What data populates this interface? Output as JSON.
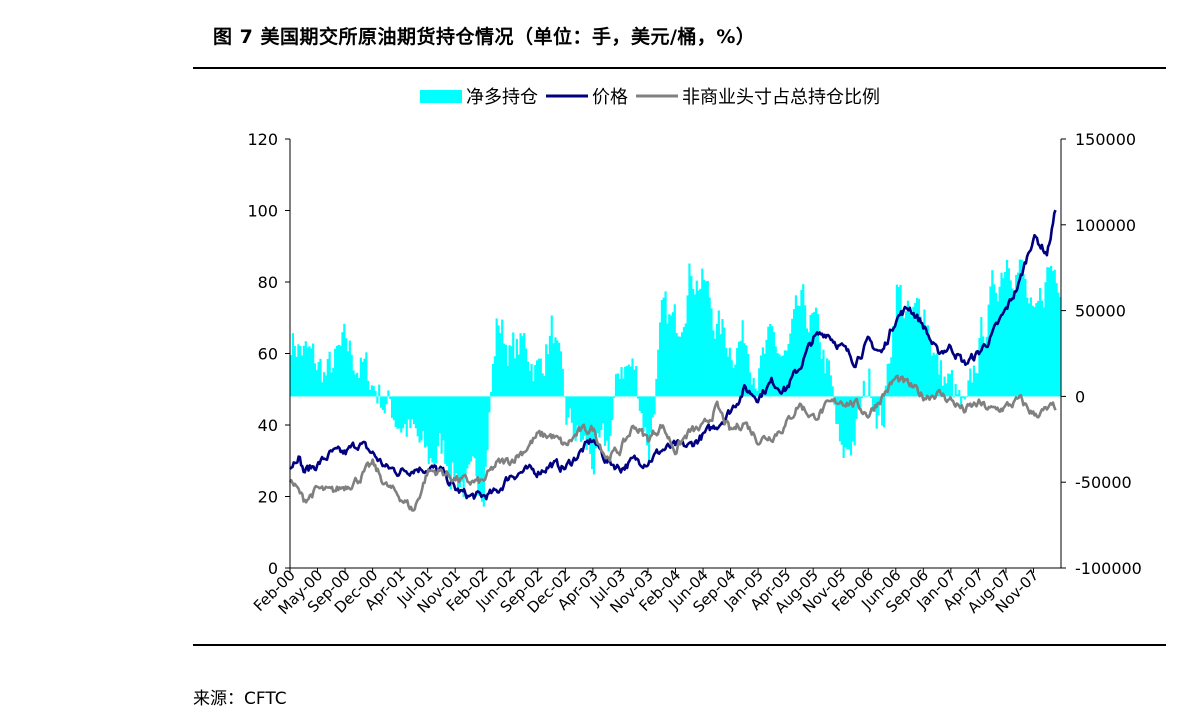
{
  "figure_title": "图 7 美国期交所原油期货持仓情况（单位：手，美元/桶，%）",
  "source": "来源：CFTC",
  "chart_data": {
    "type": "line+bar",
    "legend_position": "top",
    "grid": false,
    "title": "",
    "x_categories": [
      "Feb-00",
      "May-00",
      "Sep-00",
      "Dec-00",
      "Apr-01",
      "Jul-01",
      "Nov-01",
      "Feb-02",
      "Jun-02",
      "Sep-02",
      "Dec-02",
      "Apr-03",
      "Jul-03",
      "Nov-03",
      "Feb-04",
      "Jun-04",
      "Sep-04",
      "Jan-05",
      "Apr-05",
      "Aug-05",
      "Nov-05",
      "Feb-06",
      "Jun-06",
      "Sep-06",
      "Jan-07",
      "Apr-07",
      "Aug-07",
      "Nov-07"
    ],
    "y_left": {
      "label": "",
      "range": [
        0,
        120
      ],
      "ticks": [
        0,
        20,
        40,
        60,
        80,
        100,
        120
      ]
    },
    "y_right": {
      "label": "",
      "range": [
        -100000,
        150000
      ],
      "ticks": [
        -100000,
        -50000,
        0,
        50000,
        100000,
        150000
      ]
    },
    "series": [
      {
        "name": "净多持仓",
        "type": "bar",
        "axis": "right",
        "color": "#00FFFF",
        "anchors": [
          [
            0,
            35000
          ],
          [
            0.5,
            25000
          ],
          [
            1.3,
            12000
          ],
          [
            2,
            28000
          ],
          [
            2.8,
            12000
          ],
          [
            3.5,
            -5000
          ],
          [
            4.3,
            -20000
          ],
          [
            5,
            -38000
          ],
          [
            5.5,
            -30000
          ],
          [
            6,
            -45000
          ],
          [
            6.5,
            -55000
          ],
          [
            7,
            -45000
          ],
          [
            7.5,
            45000
          ],
          [
            8,
            25000
          ],
          [
            8.5,
            30000
          ],
          [
            9,
            15000
          ],
          [
            9.5,
            40000
          ],
          [
            10,
            -15000
          ],
          [
            10.5,
            -25000
          ],
          [
            11,
            -38000
          ],
          [
            11.5,
            -30000
          ],
          [
            12,
            20000
          ],
          [
            12.5,
            15000
          ],
          [
            13,
            -30000
          ],
          [
            13.5,
            45000
          ],
          [
            14,
            40000
          ],
          [
            14.5,
            75000
          ],
          [
            15,
            65000
          ],
          [
            15.5,
            40000
          ],
          [
            16,
            30000
          ],
          [
            16.5,
            35000
          ],
          [
            17,
            15000
          ],
          [
            17.5,
            30000
          ],
          [
            18,
            20000
          ],
          [
            18.5,
            50000
          ],
          [
            19,
            40000
          ],
          [
            19.5,
            15000
          ],
          [
            20,
            -40000
          ],
          [
            20.5,
            -20000
          ],
          [
            21,
            10000
          ],
          [
            21.5,
            -15000
          ],
          [
            22,
            65000
          ],
          [
            22.5,
            40000
          ],
          [
            23,
            55000
          ],
          [
            23.5,
            15000
          ],
          [
            24,
            5000
          ],
          [
            24.5,
            -15000
          ],
          [
            25,
            30000
          ],
          [
            25.5,
            60000
          ],
          [
            26,
            85000
          ],
          [
            26.5,
            75000
          ],
          [
            27,
            35000
          ],
          [
            27.5,
            75000
          ]
        ]
      },
      {
        "name": "价格",
        "type": "line",
        "axis": "left",
        "color": "#000080",
        "anchors": [
          [
            0,
            28
          ],
          [
            0.3,
            32
          ],
          [
            0.5,
            27
          ],
          [
            1,
            29
          ],
          [
            1.5,
            32
          ],
          [
            2,
            32
          ],
          [
            2.5,
            35
          ],
          [
            3,
            32
          ],
          [
            3.5,
            28
          ],
          [
            4,
            27
          ],
          [
            4.5,
            28
          ],
          [
            5,
            28
          ],
          [
            5.5,
            27
          ],
          [
            6,
            22
          ],
          [
            6.5,
            20
          ],
          [
            7,
            20
          ],
          [
            7.5,
            21
          ],
          [
            8,
            26
          ],
          [
            8.5,
            27
          ],
          [
            9,
            27
          ],
          [
            9.5,
            29
          ],
          [
            10,
            28
          ],
          [
            10.5,
            32
          ],
          [
            11,
            36
          ],
          [
            11.5,
            30
          ],
          [
            12,
            28
          ],
          [
            12.5,
            30
          ],
          [
            13,
            30
          ],
          [
            13.5,
            33
          ],
          [
            14,
            34
          ],
          [
            14.5,
            34
          ],
          [
            15,
            37
          ],
          [
            15.5,
            40
          ],
          [
            16,
            44
          ],
          [
            16.5,
            50
          ],
          [
            17,
            48
          ],
          [
            17.5,
            52
          ],
          [
            18,
            50
          ],
          [
            18.5,
            56
          ],
          [
            19,
            64
          ],
          [
            19.5,
            66
          ],
          [
            20,
            62
          ],
          [
            20.5,
            58
          ],
          [
            21,
            63
          ],
          [
            21.5,
            60
          ],
          [
            22,
            70
          ],
          [
            22.5,
            73
          ],
          [
            23,
            68
          ],
          [
            23.5,
            60
          ],
          [
            24,
            62
          ],
          [
            24.5,
            57
          ],
          [
            25,
            60
          ],
          [
            25.5,
            65
          ],
          [
            26,
            72
          ],
          [
            26.5,
            80
          ],
          [
            27,
            93
          ],
          [
            27.5,
            88
          ],
          [
            27.8,
            100
          ]
        ]
      },
      {
        "name": "非商业头寸占总持仓比例",
        "type": "line",
        "axis": "left",
        "color": "#808080",
        "anchors": [
          [
            0,
            25
          ],
          [
            0.5,
            19
          ],
          [
            1,
            22
          ],
          [
            1.5,
            21
          ],
          [
            2,
            23
          ],
          [
            2.5,
            25
          ],
          [
            3,
            29
          ],
          [
            3.5,
            23
          ],
          [
            4,
            20
          ],
          [
            4.5,
            16
          ],
          [
            5,
            27
          ],
          [
            5.5,
            27
          ],
          [
            6,
            25
          ],
          [
            6.5,
            24
          ],
          [
            7,
            24
          ],
          [
            7.5,
            29
          ],
          [
            8,
            30
          ],
          [
            8.5,
            33
          ],
          [
            9,
            37
          ],
          [
            9.5,
            37
          ],
          [
            10,
            34
          ],
          [
            10.5,
            38
          ],
          [
            11,
            39
          ],
          [
            11.5,
            31
          ],
          [
            12,
            33
          ],
          [
            12.5,
            40
          ],
          [
            13,
            36
          ],
          [
            13.5,
            40
          ],
          [
            14,
            33
          ],
          [
            14.5,
            38
          ],
          [
            15,
            39
          ],
          [
            15.5,
            45
          ],
          [
            16,
            38
          ],
          [
            16.5,
            41
          ],
          [
            17,
            36
          ],
          [
            17.5,
            37
          ],
          [
            18,
            40
          ],
          [
            18.5,
            46
          ],
          [
            19,
            42
          ],
          [
            19.5,
            45
          ],
          [
            20,
            47
          ],
          [
            20.5,
            46
          ],
          [
            21,
            43
          ],
          [
            21.5,
            48
          ],
          [
            22,
            53
          ],
          [
            22.5,
            51
          ],
          [
            23,
            48
          ],
          [
            23.5,
            49
          ],
          [
            24,
            47
          ],
          [
            24.5,
            44
          ],
          [
            25,
            46
          ],
          [
            25.5,
            44
          ],
          [
            26,
            45
          ],
          [
            26.5,
            47
          ],
          [
            27,
            43
          ],
          [
            27.5,
            44
          ],
          [
            27.8,
            45
          ]
        ]
      }
    ]
  }
}
